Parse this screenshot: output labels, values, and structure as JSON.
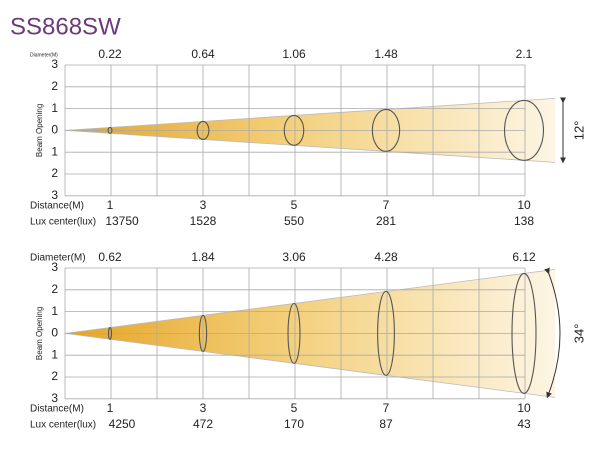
{
  "title": "SS868SW",
  "panels": [
    {
      "diameter_label": "Diameter(M)",
      "diameters": [
        "0.22",
        "0.64",
        "1.06",
        "1.48",
        "2.1"
      ],
      "y_axis_label": "Beam Opening",
      "y_ticks": [
        "3",
        "2",
        "1",
        "0",
        "1",
        "2",
        "3"
      ],
      "distance_label": "Distance(M)",
      "distances": [
        "1",
        "3",
        "5",
        "7",
        "10"
      ],
      "lux_label": "Lux center(lux)",
      "lux": [
        "13750",
        "1528",
        "550",
        "281",
        "138"
      ],
      "angle": "12°"
    },
    {
      "diameter_label": "Diameter(M)",
      "diameters": [
        "0.62",
        "1.84",
        "3.06",
        "4.28",
        "6.12"
      ],
      "y_axis_label": "Beam Opening",
      "y_ticks": [
        "3",
        "2",
        "1",
        "0",
        "1",
        "2",
        "3"
      ],
      "distance_label": "Distance(M)",
      "distances": [
        "1",
        "3",
        "5",
        "7",
        "10"
      ],
      "lux_label": "Lux center(lux)",
      "lux": [
        "4250",
        "472",
        "170",
        "87",
        "43"
      ],
      "angle": "34°"
    }
  ]
}
